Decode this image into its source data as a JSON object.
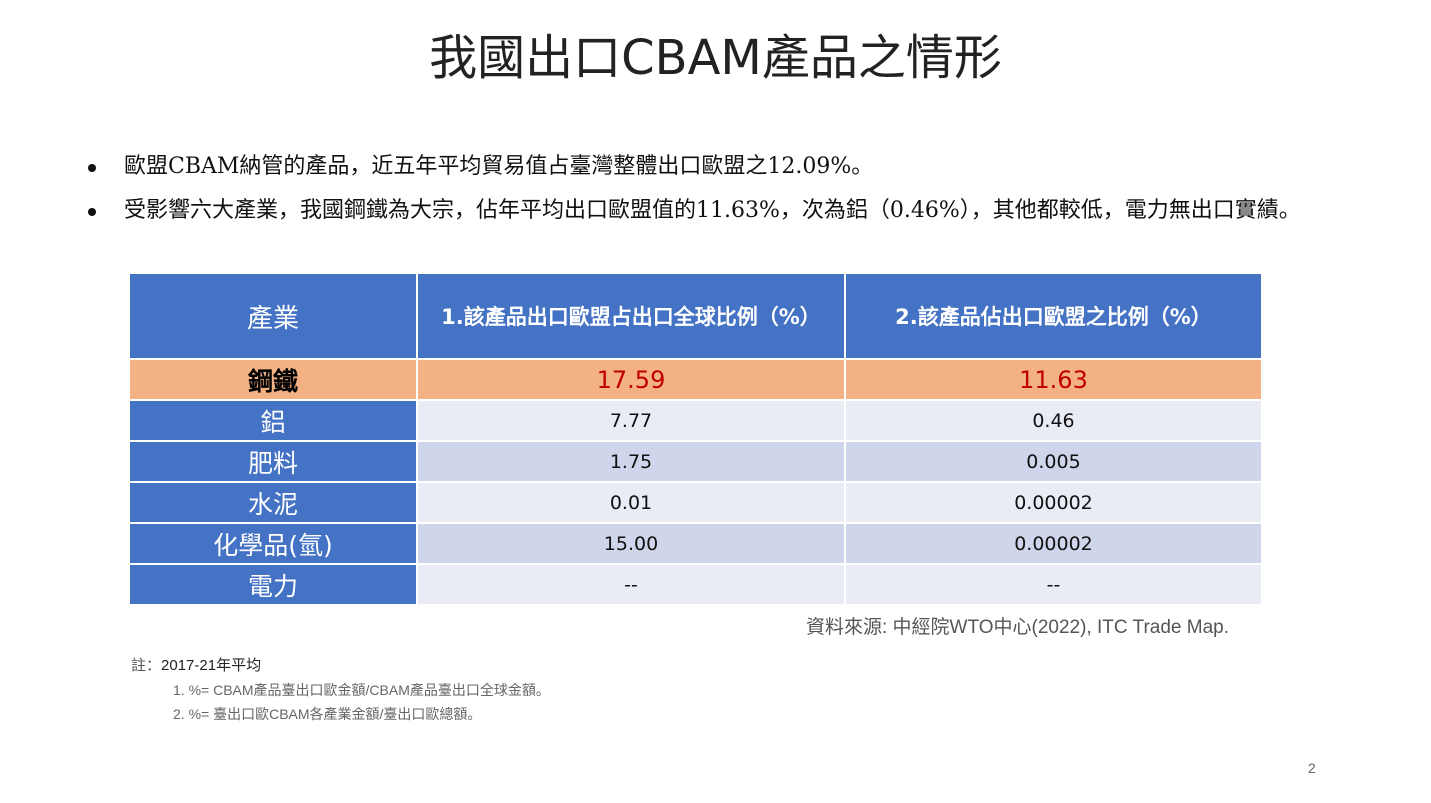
{
  "slide": {
    "title": "我國出口CBAM產品之情形",
    "bullets": [
      "歐盟CBAM納管的產品，近五年平均貿易值占臺灣整體出口歐盟之12.09%。",
      "受影響六大產業，我國鋼鐵為大宗，佔年平均出口歐盟值的11.63%，次為鋁（0.46%），其他都較低，電力無出口實績。"
    ],
    "table": {
      "headers": [
        "產業",
        "1.該產品出口歐盟占出口全球比例（%）",
        "2.該產品佔出口歐盟之比例（%）"
      ],
      "rows": [
        {
          "industry": "鋼鐵",
          "col1": "17.59",
          "col2": "11.63"
        },
        {
          "industry": "鋁",
          "col1": "7.77",
          "col2": "0.46"
        },
        {
          "industry": "肥料",
          "col1": "1.75",
          "col2": "0.005"
        },
        {
          "industry": "水泥",
          "col1": "0.01",
          "col2": "0.00002"
        },
        {
          "industry": "化學品(氫)",
          "col1": "15.00",
          "col2": "0.00002"
        },
        {
          "industry": "電力",
          "col1": "--",
          "col2": "--"
        }
      ],
      "highlight_color": "#f4b183",
      "header_color": "#4472c4",
      "highlight_value_color": "#c00000"
    },
    "source": "資料來源: 中經院WTO中心(2022), ITC Trade Map.",
    "notes": {
      "prefix": "註：",
      "period": "2017-21年平均",
      "lines": [
        "1. %= CBAM產品臺出口歐金額/CBAM產品臺出口全球金額。",
        "2. %= 臺出口歐CBAM各產業金額/臺出口歐總額。"
      ]
    },
    "page_number": "2"
  }
}
